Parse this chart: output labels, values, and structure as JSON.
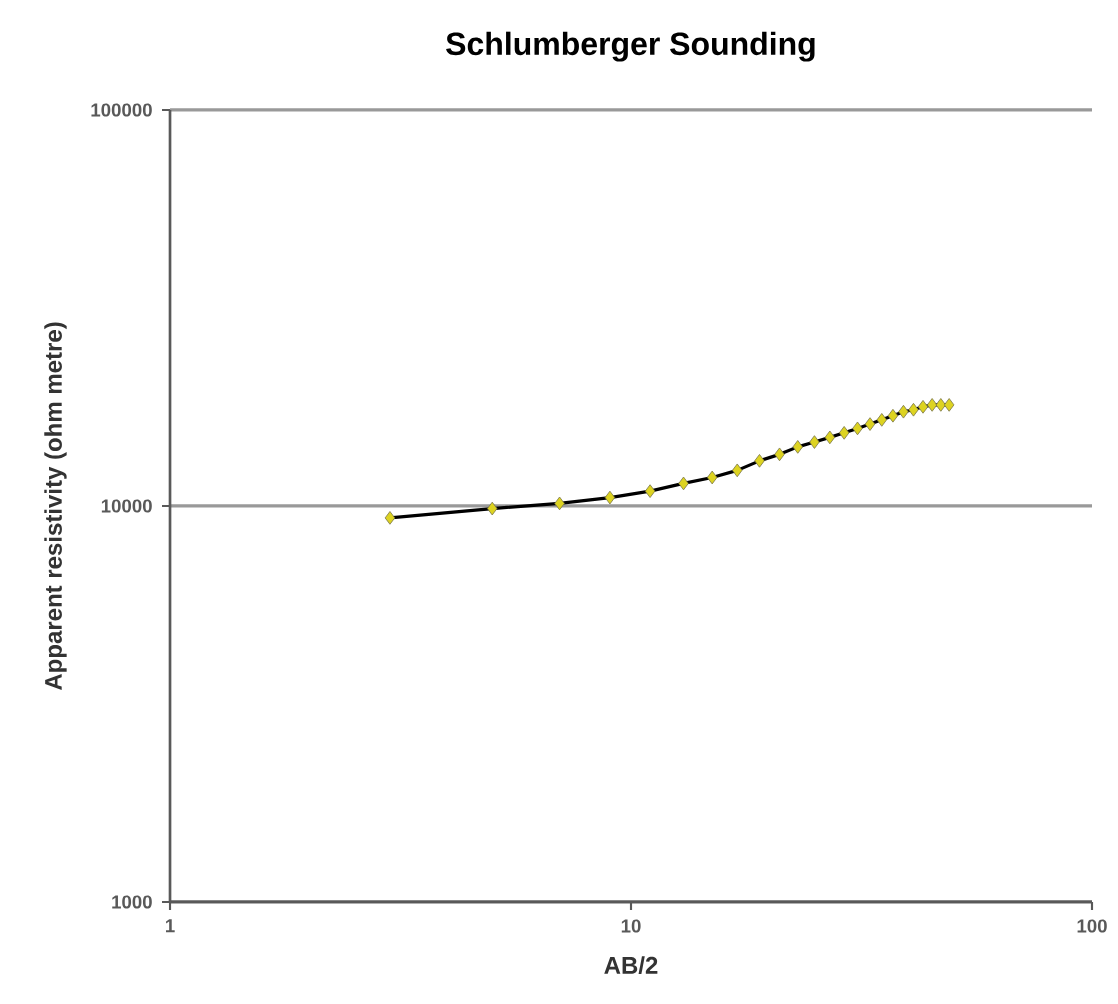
{
  "chart_data": {
    "type": "line",
    "title": "Schlumberger Sounding",
    "xlabel": "AB/2",
    "ylabel": "Apparent resistivity (ohm metre)",
    "log": "xy",
    "xlim": [
      1,
      100
    ],
    "ylim": [
      1000,
      100000
    ],
    "xticks": [
      1,
      10,
      100
    ],
    "yticks": [
      1000,
      10000,
      100000
    ],
    "grid": "y",
    "marker": "diamond",
    "line_style": "solid",
    "series": [
      {
        "color": "#000000",
        "x": [
          3,
          5,
          7,
          9,
          11,
          13,
          15,
          17,
          19,
          21,
          23,
          25,
          27,
          29,
          31,
          33,
          35,
          37,
          39,
          41,
          43,
          45,
          47,
          49
        ],
        "values": [
          9330,
          9850,
          10150,
          10500,
          10900,
          11400,
          11800,
          12300,
          13000,
          13500,
          14100,
          14500,
          14900,
          15300,
          15700,
          16100,
          16500,
          16900,
          17300,
          17500,
          17800,
          18000,
          18000,
          18000
        ]
      }
    ]
  }
}
